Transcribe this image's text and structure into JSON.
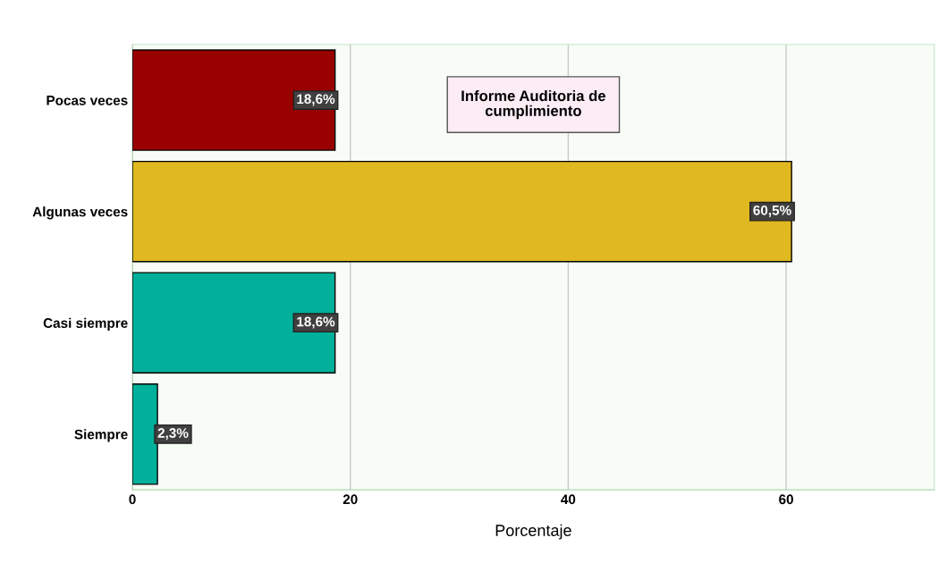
{
  "chart_data": {
    "type": "bar",
    "orientation": "horizontal",
    "title": "Informe Auditoria de\ncumplimiento",
    "xlabel": "Porcentaje",
    "categories": [
      "Pocas veces",
      "Algunas veces",
      "Casi siempre",
      "Siempre"
    ],
    "values": [
      18.6,
      60.5,
      18.6,
      2.3
    ],
    "colors": [
      "#990000",
      "#e0b81f",
      "#00b09a",
      "#00b09a"
    ],
    "value_labels": [
      "18,6%",
      "60,5%",
      "18,6%",
      "2,3%"
    ],
    "xlim": [
      0,
      73.6
    ],
    "xticks": [
      0,
      20,
      40,
      60
    ],
    "grid": "x",
    "legend": false
  }
}
